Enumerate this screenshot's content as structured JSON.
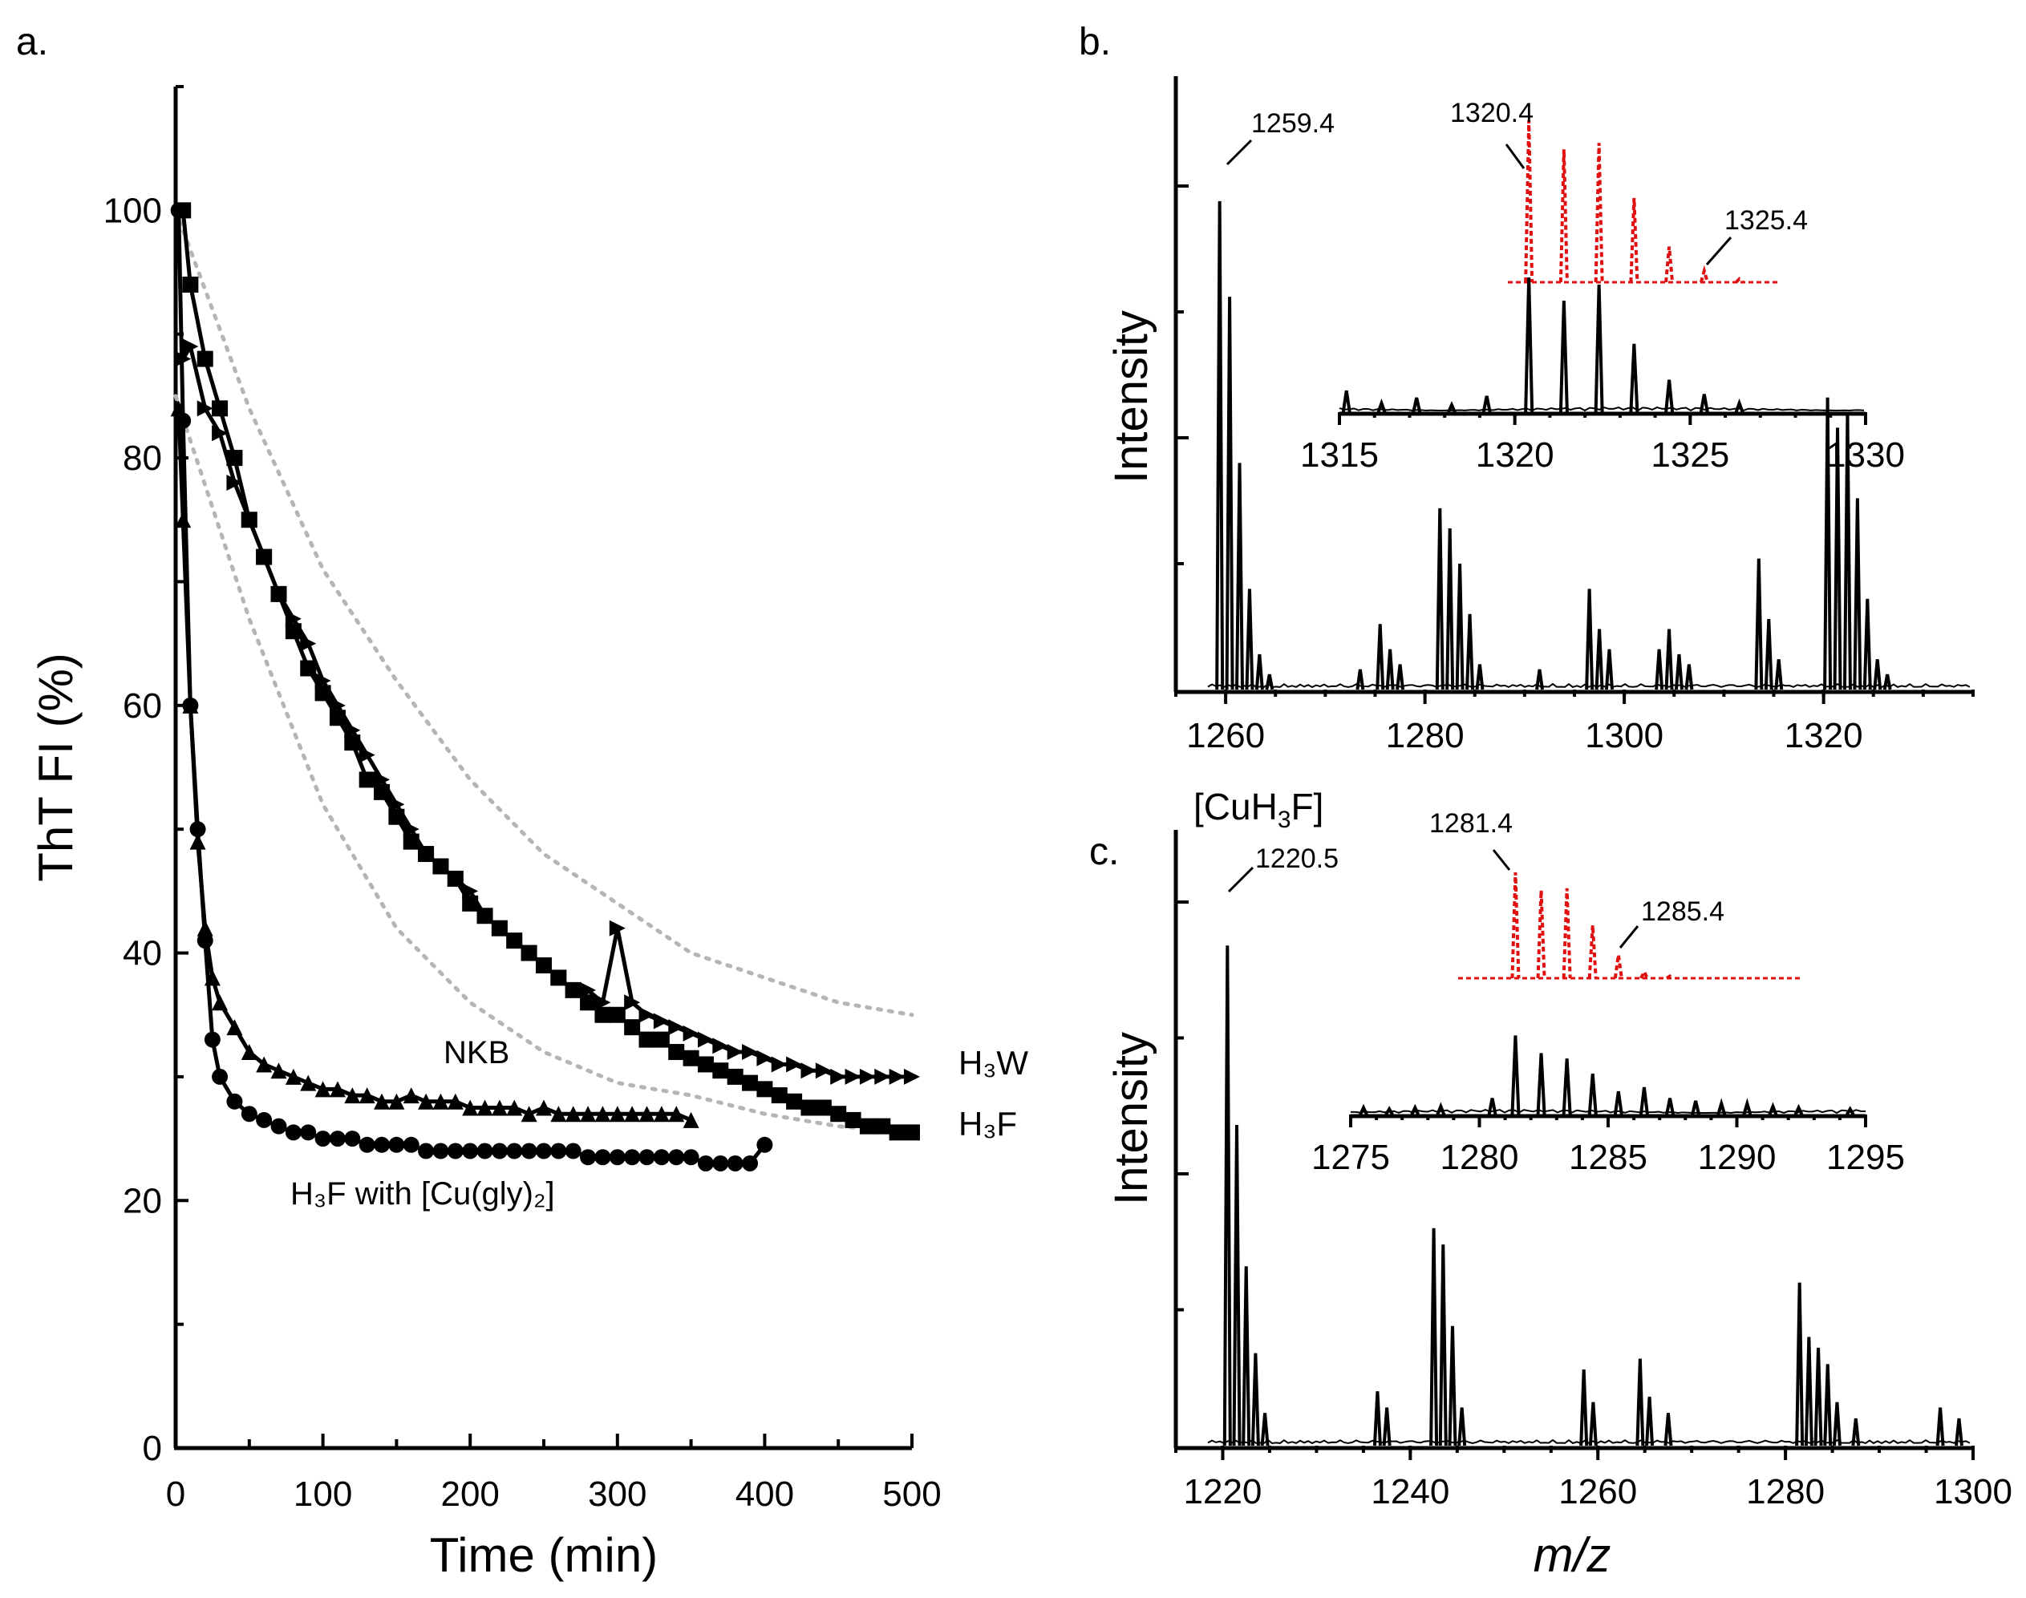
{
  "panels": {
    "a": "a.",
    "b": "b.",
    "c": "c."
  },
  "chart_data": [
    {
      "id": "a",
      "type": "scatter",
      "title": "",
      "xlabel": "Time (min)",
      "ylabel": "ThT FI (%)",
      "xlim": [
        0,
        500
      ],
      "ylim": [
        0,
        110
      ],
      "xticks": [
        0,
        100,
        200,
        300,
        400,
        500
      ],
      "yticks": [
        0,
        20,
        40,
        60,
        80,
        100
      ],
      "series": [
        {
          "name": "H3W",
          "marker": "triangle-right",
          "fit": "solid",
          "x": [
            5,
            10,
            20,
            30,
            40,
            50,
            60,
            70,
            80,
            90,
            100,
            110,
            120,
            130,
            140,
            150,
            160,
            170,
            180,
            190,
            200,
            210,
            220,
            230,
            240,
            250,
            260,
            270,
            280,
            290,
            300,
            310,
            320,
            330,
            340,
            350,
            360,
            370,
            380,
            390,
            400,
            410,
            420,
            430,
            440,
            450,
            460,
            470,
            480,
            490,
            500
          ],
          "y": [
            88,
            89,
            84,
            82,
            78,
            75,
            72,
            69,
            67,
            65,
            62,
            60,
            58,
            56,
            54,
            52,
            50,
            48,
            47,
            46,
            45,
            43,
            42,
            41,
            40,
            39,
            38,
            37,
            37,
            36,
            42,
            36,
            35,
            34.5,
            34,
            33.5,
            33,
            32.5,
            32,
            32,
            31.5,
            31,
            31,
            30.5,
            30.5,
            30,
            30,
            30,
            30,
            30,
            30
          ]
        },
        {
          "name": "H3F",
          "marker": "square",
          "fit": "solid",
          "x": [
            5,
            10,
            20,
            30,
            40,
            50,
            60,
            70,
            80,
            90,
            100,
            110,
            120,
            130,
            140,
            150,
            160,
            170,
            180,
            190,
            200,
            210,
            220,
            230,
            240,
            250,
            260,
            270,
            280,
            290,
            300,
            310,
            320,
            330,
            340,
            350,
            360,
            370,
            380,
            390,
            400,
            410,
            420,
            430,
            440,
            450,
            460,
            470,
            480,
            490,
            500
          ],
          "y": [
            100,
            94,
            88,
            84,
            80,
            75,
            72,
            69,
            66,
            63,
            61,
            59,
            57,
            54,
            53,
            51,
            49,
            48,
            47,
            46,
            44,
            43,
            42,
            41,
            40,
            39,
            38,
            37,
            36,
            35,
            35,
            34,
            33,
            33,
            32,
            31.5,
            31,
            30.5,
            30,
            29.5,
            29,
            28.5,
            28,
            27.5,
            27.5,
            27,
            26.5,
            26,
            26,
            25.5,
            25.5
          ]
        },
        {
          "name": "NKB",
          "marker": "triangle-up",
          "fit": "solid",
          "x": [
            2,
            5,
            10,
            15,
            20,
            25,
            30,
            40,
            50,
            60,
            70,
            80,
            90,
            100,
            110,
            120,
            130,
            140,
            150,
            160,
            170,
            180,
            190,
            200,
            210,
            220,
            230,
            240,
            250,
            260,
            270,
            280,
            290,
            300,
            310,
            320,
            330,
            340,
            350
          ],
          "y": [
            84,
            75,
            60,
            49,
            42,
            38,
            36,
            34,
            32,
            31,
            30.5,
            30,
            29.5,
            29,
            29,
            28.5,
            28.5,
            28,
            28,
            28.5,
            28,
            28,
            28,
            27.5,
            27.5,
            27.5,
            27.5,
            27,
            27.5,
            27,
            27,
            27,
            27,
            27,
            27,
            27,
            27,
            27,
            26.5
          ]
        },
        {
          "name": "H3F with [Cu(gly)2]",
          "marker": "circle",
          "fit": "solid",
          "x": [
            2,
            5,
            10,
            15,
            20,
            25,
            30,
            40,
            50,
            60,
            70,
            80,
            90,
            100,
            110,
            120,
            130,
            140,
            150,
            160,
            170,
            180,
            190,
            200,
            210,
            220,
            230,
            240,
            250,
            260,
            270,
            280,
            290,
            300,
            310,
            320,
            330,
            340,
            350,
            360,
            370,
            380,
            390,
            400
          ],
          "y": [
            100,
            83,
            60,
            50,
            41,
            33,
            30,
            28,
            27,
            26.5,
            26,
            25.5,
            25.5,
            25,
            25,
            25,
            24.5,
            24.5,
            24.5,
            24.5,
            24,
            24,
            24,
            24,
            24,
            24,
            24,
            24,
            24,
            24,
            24,
            23.5,
            23.5,
            23.5,
            23.5,
            23.5,
            23.5,
            23.5,
            23.5,
            23,
            23,
            23,
            23,
            24.5
          ]
        }
      ],
      "reference_curves": [
        {
          "name": "ref-upper",
          "style": "dotted-gray",
          "x": [
            0,
            50,
            100,
            150,
            200,
            250,
            300,
            350,
            400,
            450,
            500
          ],
          "y": [
            100,
            84,
            71,
            62,
            54,
            48,
            44,
            40,
            38,
            36,
            35
          ]
        },
        {
          "name": "ref-lower",
          "style": "dotted-gray",
          "x": [
            0,
            50,
            100,
            150,
            200,
            250,
            300,
            350,
            400,
            450,
            500
          ],
          "y": [
            85,
            67,
            52,
            42,
            36,
            32,
            29.5,
            28.5,
            27,
            26,
            25.5
          ]
        }
      ],
      "annotations": {
        "h3w": "H₃W",
        "h3f": "H₃F",
        "nkb": "NKB",
        "cu": "H₃F with [Cu(gly)₂]"
      }
    },
    {
      "id": "b",
      "type": "line",
      "title": "",
      "xlabel": "",
      "ylabel": "Intensity",
      "xlim": [
        1255,
        1335
      ],
      "ylim": [
        0,
        1
      ],
      "xticks": [
        1260,
        1280,
        1300,
        1320
      ],
      "peaks": [
        [
          1259.4,
          0.97
        ],
        [
          1260.4,
          0.78
        ],
        [
          1261.4,
          0.45
        ],
        [
          1262.4,
          0.2
        ],
        [
          1263.4,
          0.07
        ],
        [
          1264.4,
          0.03
        ],
        [
          1273.5,
          0.04
        ],
        [
          1275.5,
          0.13
        ],
        [
          1276.5,
          0.08
        ],
        [
          1277.5,
          0.05
        ],
        [
          1281.5,
          0.36
        ],
        [
          1282.5,
          0.32
        ],
        [
          1283.5,
          0.25
        ],
        [
          1284.5,
          0.15
        ],
        [
          1285.5,
          0.05
        ],
        [
          1291.5,
          0.04
        ],
        [
          1296.5,
          0.2
        ],
        [
          1297.5,
          0.12
        ],
        [
          1298.5,
          0.08
        ],
        [
          1303.5,
          0.08
        ],
        [
          1304.5,
          0.12
        ],
        [
          1305.5,
          0.07
        ],
        [
          1306.5,
          0.05
        ],
        [
          1313.5,
          0.26
        ],
        [
          1314.5,
          0.14
        ],
        [
          1315.5,
          0.06
        ],
        [
          1320.4,
          0.58
        ],
        [
          1321.4,
          0.52
        ],
        [
          1322.4,
          0.55
        ],
        [
          1323.4,
          0.38
        ],
        [
          1324.4,
          0.18
        ],
        [
          1325.4,
          0.06
        ],
        [
          1326.4,
          0.03
        ]
      ],
      "peak_labels": [
        "1259.4"
      ],
      "inset": {
        "xlim": [
          1315,
          1330
        ],
        "xticks": [
          1315,
          1320,
          1325,
          1330
        ],
        "experimental": [
          [
            1315.2,
            0.12
          ],
          [
            1316.2,
            0.05
          ],
          [
            1317.2,
            0.08
          ],
          [
            1318.2,
            0.04
          ],
          [
            1319.2,
            0.09
          ],
          [
            1320.4,
            0.75
          ],
          [
            1321.4,
            0.62
          ],
          [
            1322.4,
            0.71
          ],
          [
            1323.4,
            0.38
          ],
          [
            1324.4,
            0.18
          ],
          [
            1325.4,
            0.1
          ],
          [
            1326.4,
            0.05
          ]
        ],
        "simulated": [
          [
            1320.4,
            1.0
          ],
          [
            1321.4,
            0.82
          ],
          [
            1322.4,
            0.86
          ],
          [
            1323.4,
            0.52
          ],
          [
            1324.4,
            0.22
          ],
          [
            1325.4,
            0.07
          ],
          [
            1326.4,
            0.02
          ]
        ],
        "labels": [
          "1320.4",
          "1325.4"
        ]
      }
    },
    {
      "id": "c",
      "type": "line",
      "title": "[CuH3F]",
      "xlabel": "m/z",
      "ylabel": "Intensity",
      "xlim": [
        1215,
        1300
      ],
      "ylim": [
        0,
        1
      ],
      "xticks": [
        1220,
        1240,
        1260,
        1280,
        1300
      ],
      "peaks": [
        [
          1220.5,
          0.92
        ],
        [
          1221.5,
          0.59
        ],
        [
          1222.5,
          0.33
        ],
        [
          1223.5,
          0.17
        ],
        [
          1224.5,
          0.06
        ],
        [
          1236.5,
          0.1
        ],
        [
          1237.5,
          0.07
        ],
        [
          1242.5,
          0.4
        ],
        [
          1243.5,
          0.37
        ],
        [
          1244.5,
          0.22
        ],
        [
          1245.5,
          0.07
        ],
        [
          1258.5,
          0.14
        ],
        [
          1259.5,
          0.08
        ],
        [
          1264.5,
          0.16
        ],
        [
          1265.5,
          0.09
        ],
        [
          1267.5,
          0.06
        ],
        [
          1281.5,
          0.3
        ],
        [
          1282.5,
          0.2
        ],
        [
          1283.5,
          0.18
        ],
        [
          1284.5,
          0.15
        ],
        [
          1285.5,
          0.08
        ],
        [
          1287.5,
          0.05
        ],
        [
          1296.5,
          0.07
        ],
        [
          1298.5,
          0.05
        ]
      ],
      "peak_labels": [
        "1220.5"
      ],
      "inset": {
        "xlim": [
          1275,
          1295
        ],
        "xticks": [
          1275,
          1280,
          1285,
          1290,
          1295
        ],
        "experimental": [
          [
            1275.5,
            0.05
          ],
          [
            1276.5,
            0.04
          ],
          [
            1277.5,
            0.05
          ],
          [
            1278.5,
            0.06
          ],
          [
            1280.5,
            0.12
          ],
          [
            1281.4,
            0.58
          ],
          [
            1282.4,
            0.45
          ],
          [
            1283.4,
            0.41
          ],
          [
            1284.4,
            0.3
          ],
          [
            1285.4,
            0.17
          ],
          [
            1286.4,
            0.2
          ],
          [
            1287.4,
            0.12
          ],
          [
            1288.4,
            0.1
          ],
          [
            1289.4,
            0.08
          ],
          [
            1290.4,
            0.08
          ],
          [
            1291.4,
            0.06
          ],
          [
            1292.4,
            0.05
          ],
          [
            1294.4,
            0.04
          ]
        ],
        "simulated": [
          [
            1281.4,
            1.0
          ],
          [
            1282.4,
            0.83
          ],
          [
            1283.4,
            0.85
          ],
          [
            1284.4,
            0.5
          ],
          [
            1285.4,
            0.22
          ],
          [
            1286.4,
            0.06
          ],
          [
            1287.4,
            0.02
          ]
        ],
        "labels": [
          "1281.4",
          "1285.4"
        ]
      }
    }
  ]
}
